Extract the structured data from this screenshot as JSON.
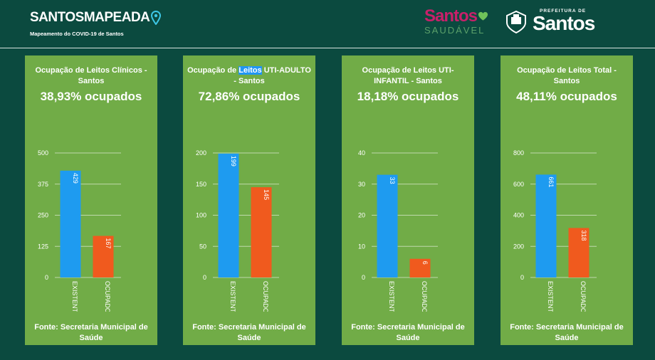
{
  "header": {
    "brand_title": "SANTOSMAPEADA",
    "brand_subtitle": "Mapeamento do COVID-19 de Santos",
    "saudavel_line1": "Santos",
    "saudavel_line2": "SAUDÁVEL",
    "prefeitura_line1": "PREFEITURA DE",
    "prefeitura_line2": "Santos"
  },
  "colors": {
    "existente": "#1e9bf0",
    "ocupado": "#f05a1e",
    "card": "#71ac47",
    "background": "#0b4a3f"
  },
  "cards": [
    {
      "title_pre": "Ocupação de Leitos Clínicos - Santos",
      "title_hl": "",
      "title_post": "",
      "percent": "38,93% ocupados",
      "source": "Fonte: Secretaria Municipal de Saúde"
    },
    {
      "title_pre": "Ocupação de ",
      "title_hl": "Leitos",
      "title_post": " UTI-ADULTO - Santos",
      "percent": "72,86% ocupados",
      "source": "Fonte: Secretaria Municipal de Saúde"
    },
    {
      "title_pre": "Ocupação de Leitos UTI-INFANTIL - Santos",
      "title_hl": "",
      "title_post": "",
      "percent": "18,18% ocupados",
      "source": "Fonte: Secretaria Municipal de Saúde"
    },
    {
      "title_pre": "Ocupação de Leitos Total - Santos",
      "title_hl": "",
      "title_post": "",
      "percent": "48,11% ocupados",
      "source": "Fonte: Secretaria Municipal de Saúde"
    }
  ],
  "chart_data": [
    {
      "type": "bar",
      "categories": [
        "EXISTENTE",
        "OCUPADO"
      ],
      "values": [
        429,
        167
      ],
      "value_labels": [
        "429",
        "167"
      ],
      "ylim": [
        0,
        500
      ],
      "yticks": [
        "0",
        "125",
        "250",
        "375",
        "500"
      ],
      "title": "Ocupação de Leitos Clínicos - Santos"
    },
    {
      "type": "bar",
      "categories": [
        "EXISTENTE",
        "OCUPADO"
      ],
      "values": [
        199,
        145
      ],
      "value_labels": [
        "199",
        "145"
      ],
      "ylim": [
        0,
        200
      ],
      "yticks": [
        "0",
        "50",
        "100",
        "150",
        "200"
      ],
      "title": "Ocupação de Leitos UTI-ADULTO - Santos"
    },
    {
      "type": "bar",
      "categories": [
        "EXISTENTE",
        "OCUPADO"
      ],
      "values": [
        33,
        6
      ],
      "value_labels": [
        "33",
        "6"
      ],
      "ylim": [
        0,
        40
      ],
      "yticks": [
        "0",
        "10",
        "20",
        "30",
        "40"
      ],
      "title": "Ocupação de Leitos UTI-INFANTIL - Santos"
    },
    {
      "type": "bar",
      "categories": [
        "EXISTENTE",
        "OCUPADO"
      ],
      "values": [
        661,
        318
      ],
      "value_labels": [
        "661",
        "318"
      ],
      "ylim": [
        0,
        800
      ],
      "yticks": [
        "0",
        "200",
        "400",
        "600",
        "800"
      ],
      "title": "Ocupação de Leitos Total - Santos"
    }
  ]
}
